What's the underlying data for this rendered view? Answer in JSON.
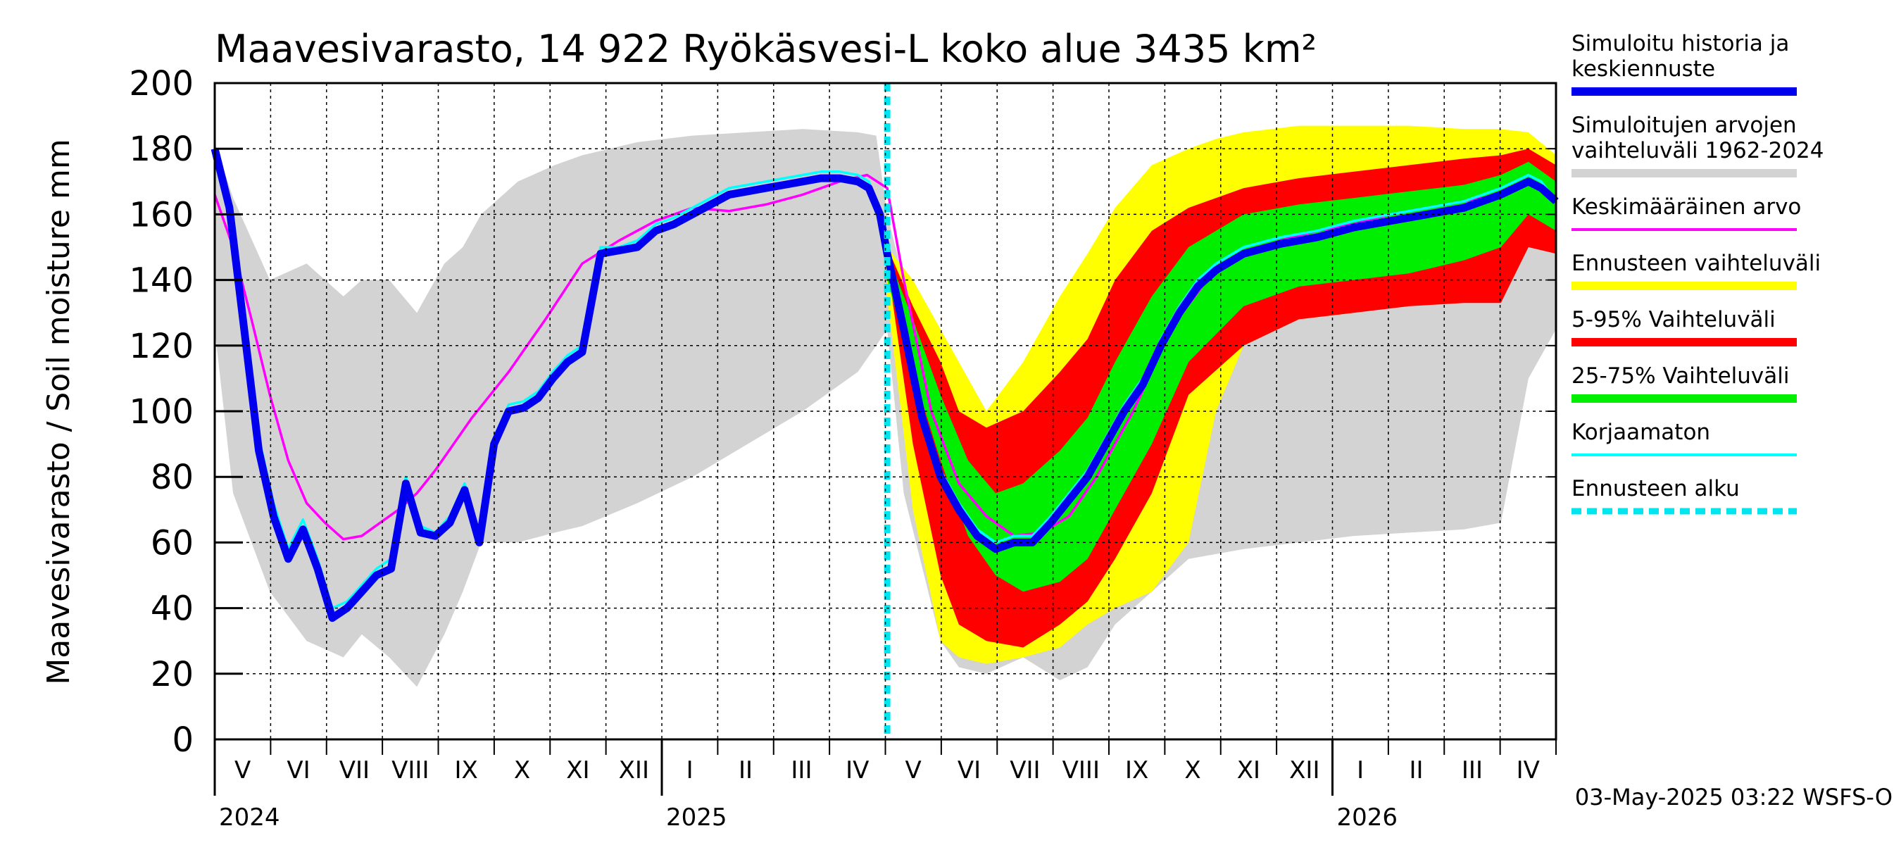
{
  "chart_data": {
    "type": "area",
    "title": "Maavesivarasto, 14 922 Ryökäsvesi-L koko alue 3435 km²",
    "ylabel": "Maavesivarasto / Soil moisture   mm",
    "ylim": [
      0,
      200
    ],
    "y_ticks": [
      "0",
      "20",
      "40",
      "60",
      "80",
      "100",
      "120",
      "140",
      "160",
      "180",
      "200"
    ],
    "grid": true,
    "legend_placement": "right",
    "months": [
      "V",
      "VI",
      "VII",
      "VIII",
      "IX",
      "X",
      "XI",
      "XII",
      "I",
      "II",
      "III",
      "IV",
      "V",
      "VI",
      "VII",
      "VIII",
      "IX",
      "X",
      "XI",
      "XII",
      "I",
      "II",
      "III",
      "IV"
    ],
    "years": [
      "2024",
      "2025",
      "2026"
    ],
    "x_range_days": [
      0,
      730
    ],
    "forecast_start_day": 366,
    "timestamp": "03-May-2025 03:22 WSFS-O",
    "colors": {
      "historical_range": "#d3d3d3",
      "forecast_range": "#ffff00",
      "p5_95": "#ff0000",
      "p25_75": "#00ee00",
      "simulated": "#0000ee",
      "mean": "#ff00ff",
      "uncorrected": "#00ffff",
      "forecast_start": "#00e5ee"
    },
    "legend": [
      {
        "key": "sim",
        "lines": [
          "Simuloitu historia ja",
          "keskiennuste"
        ],
        "color": "#0000ee",
        "style": "thick"
      },
      {
        "key": "hist",
        "lines": [
          "Simuloitujen arvojen",
          "vaihteluväli 1962-2024"
        ],
        "color": "#d3d3d3",
        "style": "thick"
      },
      {
        "key": "mean",
        "lines": [
          "Keskimääräinen arvo"
        ],
        "color": "#ff00ff",
        "style": "thin"
      },
      {
        "key": "fc",
        "lines": [
          "Ennusteen vaihteluväli"
        ],
        "color": "#ffff00",
        "style": "thick"
      },
      {
        "key": "p95",
        "lines": [
          "5-95% Vaihteluväli"
        ],
        "color": "#ff0000",
        "style": "thick"
      },
      {
        "key": "p75",
        "lines": [
          "25-75% Vaihteluväli"
        ],
        "color": "#00ee00",
        "style": "thick"
      },
      {
        "key": "unc",
        "lines": [
          "Korjaamaton"
        ],
        "color": "#00ffff",
        "style": "thin"
      },
      {
        "key": "start",
        "lines": [
          "Ennusteen alku"
        ],
        "color": "#00e5ee",
        "style": "dashed"
      }
    ],
    "series": [
      {
        "name": "Simuloitujen arvojen vaihteluväli 1962-2024",
        "kind": "band",
        "x": [
          0,
          10,
          30,
          50,
          70,
          80,
          95,
          110,
          125,
          135,
          145,
          165,
          185,
          200,
          230,
          260,
          290,
          320,
          350,
          360,
          366,
          375,
          395,
          405,
          420,
          440,
          460,
          475,
          490,
          510,
          530,
          560,
          590,
          620,
          650,
          680,
          700,
          715,
          730
        ],
        "low": [
          125,
          75,
          45,
          30,
          25,
          32,
          25,
          16,
          32,
          45,
          60,
          60,
          63,
          65,
          72,
          80,
          90,
          100,
          112,
          120,
          125,
          75,
          30,
          22,
          20,
          25,
          18,
          22,
          35,
          45,
          55,
          58,
          60,
          62,
          63,
          64,
          66,
          110,
          125
        ],
        "high": [
          182,
          165,
          140,
          145,
          135,
          140,
          140,
          130,
          145,
          150,
          160,
          170,
          175,
          178,
          182,
          184,
          185,
          186,
          185,
          184,
          160,
          140,
          120,
          95,
          85,
          100,
          110,
          125,
          145,
          165,
          172,
          178,
          183,
          185,
          186,
          186,
          186,
          183,
          172
        ]
      },
      {
        "name": "Ennusteen vaihteluväli",
        "kind": "band",
        "x": [
          366,
          380,
          395,
          405,
          420,
          440,
          460,
          475,
          490,
          510,
          530,
          545,
          560,
          590,
          620,
          650,
          680,
          700,
          715,
          730
        ],
        "low": [
          135,
          70,
          30,
          25,
          23,
          25,
          28,
          35,
          40,
          45,
          60,
          100,
          120,
          128,
          130,
          133,
          135,
          140,
          150,
          150
        ],
        "high": [
          150,
          140,
          125,
          115,
          100,
          115,
          135,
          148,
          162,
          175,
          180,
          183,
          185,
          187,
          187,
          187,
          186,
          186,
          185,
          178
        ]
      },
      {
        "name": "5-95% Vaihteluväli",
        "kind": "band",
        "x": [
          366,
          380,
          395,
          405,
          420,
          440,
          460,
          475,
          490,
          510,
          530,
          560,
          590,
          620,
          650,
          680,
          700,
          715,
          730
        ],
        "low": [
          145,
          90,
          50,
          35,
          30,
          28,
          35,
          42,
          55,
          75,
          105,
          120,
          128,
          130,
          132,
          133,
          133,
          150,
          148
        ],
        "high": [
          150,
          132,
          115,
          100,
          95,
          100,
          112,
          122,
          140,
          155,
          162,
          168,
          171,
          173,
          175,
          177,
          178,
          180,
          175
        ]
      },
      {
        "name": "25-75% Vaihteluväli",
        "kind": "band",
        "x": [
          366,
          380,
          395,
          410,
          425,
          440,
          460,
          475,
          490,
          510,
          530,
          560,
          590,
          620,
          650,
          680,
          700,
          715,
          730
        ],
        "low": [
          140,
          112,
          85,
          62,
          50,
          45,
          48,
          55,
          70,
          90,
          115,
          132,
          138,
          140,
          142,
          146,
          150,
          160,
          155
        ],
        "high": [
          148,
          128,
          105,
          85,
          75,
          78,
          88,
          98,
          115,
          135,
          150,
          160,
          163,
          165,
          167,
          169,
          172,
          176,
          170
        ]
      },
      {
        "name": "Keskimääräinen arvo",
        "kind": "line",
        "x": [
          0,
          10,
          20,
          30,
          40,
          50,
          60,
          70,
          80,
          90,
          100,
          110,
          120,
          140,
          160,
          180,
          200,
          220,
          240,
          260,
          280,
          300,
          320,
          340,
          355,
          366,
          375,
          390,
          405,
          420,
          435,
          450,
          465,
          480,
          500,
          520,
          540,
          560,
          580,
          600,
          620,
          640,
          660,
          680,
          700,
          715,
          730
        ],
        "y": [
          166,
          150,
          128,
          105,
          85,
          72,
          66,
          61,
          62,
          66,
          70,
          75,
          82,
          98,
          112,
          128,
          145,
          152,
          158,
          162,
          161,
          163,
          166,
          170,
          172,
          168,
          140,
          100,
          78,
          68,
          62,
          63,
          68,
          80,
          100,
          125,
          140,
          148,
          152,
          155,
          157,
          160,
          162,
          164,
          166,
          170,
          165
        ]
      },
      {
        "name": "Korjaamaton",
        "kind": "line",
        "x": [
          0,
          8,
          16,
          24,
          32,
          40,
          48,
          56,
          64,
          72,
          80,
          88,
          96,
          104,
          112,
          120,
          128,
          136,
          144,
          152,
          160,
          168,
          176,
          184,
          192,
          200,
          210,
          220,
          230,
          240,
          250,
          260,
          270,
          280,
          290,
          300,
          310,
          320,
          330,
          340,
          350,
          356,
          362,
          366,
          375,
          385,
          395,
          405,
          415,
          425,
          435,
          445,
          455,
          465,
          475,
          485,
          495,
          505,
          515,
          525,
          535,
          545,
          560,
          580,
          600,
          620,
          640,
          660,
          680,
          700,
          715,
          722,
          730
        ],
        "y": [
          180,
          165,
          128,
          92,
          72,
          58,
          67,
          55,
          40,
          42,
          47,
          52,
          55,
          80,
          65,
          63,
          68,
          78,
          62,
          92,
          102,
          103,
          106,
          112,
          117,
          120,
          150,
          150,
          152,
          157,
          159,
          162,
          165,
          168,
          169,
          170,
          171,
          172,
          173,
          173,
          172,
          170,
          162,
          150,
          128,
          100,
          82,
          72,
          64,
          60,
          62,
          62,
          68,
          75,
          82,
          92,
          102,
          110,
          122,
          132,
          140,
          145,
          150,
          153,
          155,
          158,
          160,
          162,
          164,
          168,
          172,
          170,
          164
        ]
      },
      {
        "name": "Simuloitu historia ja keskiennuste",
        "kind": "line",
        "x": [
          0,
          8,
          16,
          24,
          32,
          40,
          48,
          56,
          64,
          72,
          80,
          88,
          96,
          104,
          112,
          120,
          128,
          136,
          144,
          152,
          160,
          168,
          176,
          184,
          192,
          200,
          210,
          220,
          230,
          240,
          250,
          260,
          270,
          280,
          290,
          300,
          310,
          320,
          330,
          340,
          350,
          356,
          362,
          366,
          375,
          385,
          395,
          405,
          415,
          425,
          435,
          445,
          455,
          465,
          475,
          485,
          495,
          505,
          515,
          525,
          535,
          545,
          560,
          580,
          600,
          620,
          640,
          660,
          680,
          700,
          715,
          722,
          730
        ],
        "y": [
          180,
          162,
          125,
          88,
          68,
          55,
          64,
          52,
          37,
          40,
          45,
          50,
          52,
          78,
          63,
          62,
          66,
          76,
          60,
          90,
          100,
          101,
          104,
          110,
          115,
          118,
          148,
          149,
          150,
          155,
          157,
          160,
          163,
          166,
          167,
          168,
          169,
          170,
          171,
          171,
          170,
          168,
          160,
          148,
          125,
          98,
          80,
          70,
          62,
          58,
          60,
          60,
          66,
          73,
          80,
          90,
          100,
          108,
          120,
          130,
          138,
          143,
          148,
          151,
          153,
          156,
          158,
          160,
          162,
          166,
          170,
          168,
          164
        ]
      }
    ]
  }
}
